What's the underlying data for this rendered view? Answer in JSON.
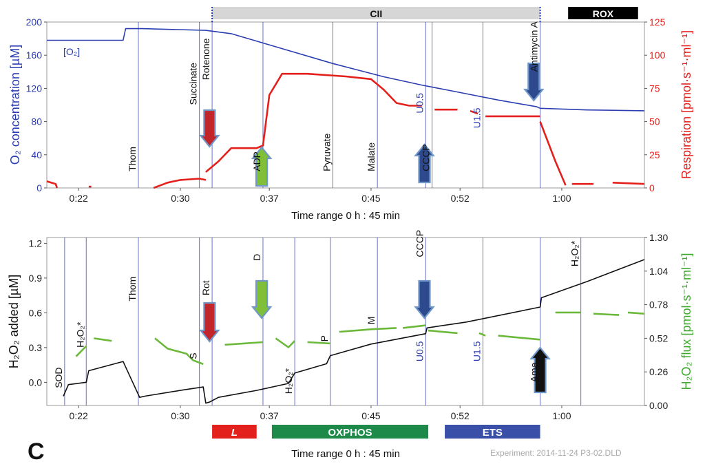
{
  "figure": {
    "panel_letter": "C",
    "experiment_note": "Experiment:  2014-11-24 P3-02.DLD",
    "colors": {
      "o2": "#2a3db0",
      "respiration": "#e3201b",
      "h2o2_added": "#111111",
      "h2o2_flux": "#6bb83a",
      "marker_line": "#3a3fb5",
      "cii_bar": "#d6d6d6",
      "rox_bar": "#000000",
      "L_bar": "#e3201b",
      "oxphos_bar": "#1e8a4a",
      "ets_bar": "#3a4fa8"
    }
  },
  "chart_data": [
    {
      "type": "line",
      "title": "",
      "xlabel": "Time range 0 h : 45 min",
      "x_tick_labels": [
        "0:22",
        "0:30",
        "0:37",
        "0:45",
        "0:52",
        "1:00"
      ],
      "x_ticks_min": [
        22,
        30,
        37,
        45,
        52,
        60
      ],
      "xlim_min": [
        19.5,
        66.5
      ],
      "y_left": {
        "label": "O₂ concentration [µM]",
        "lim": [
          0,
          200
        ],
        "ticks": [
          "0",
          "40",
          "80",
          "120",
          "160",
          "200"
        ]
      },
      "y_right": {
        "label": "Respiration [pmol·s⁻¹·ml⁻¹]",
        "lim": [
          0,
          125
        ],
        "ticks": [
          "0",
          "25",
          "50",
          "75",
          "100",
          "125"
        ]
      },
      "phase_bars": [
        {
          "label": "CII",
          "from_min": 32.5,
          "to_min": 58.3
        },
        {
          "label": "ROX",
          "from_min": 60.5,
          "to_min": 66.0
        }
      ],
      "series": [
        {
          "name": "[O₂]",
          "axis": "left",
          "x": [
            19.5,
            25.5,
            25.7,
            27.0,
            32.0,
            34.0,
            38.0,
            42.0,
            46.0,
            49.0,
            52.0,
            55.0,
            58.0,
            58.3,
            62.0,
            66.5
          ],
          "y": [
            178,
            178,
            192,
            192,
            190,
            186,
            168,
            150,
            134,
            124,
            115,
            106,
            98,
            96,
            94,
            93
          ]
        },
        {
          "name": "Respiration",
          "axis": "right",
          "segments": [
            {
              "x": [
                19.5,
                20.2,
                20.3
              ],
              "y": [
                5,
                3,
                0
              ]
            },
            {
              "x": [
                22.8,
                23.0
              ],
              "y": [
                1,
                1
              ]
            },
            {
              "x": [
                27.9,
                29.0,
                30.0,
                31.5,
                32.0
              ],
              "y": [
                0,
                4,
                6,
                7,
                6
              ]
            },
            {
              "x": [
                32.0,
                33.0,
                34.0,
                35.0,
                36.0,
                36.5,
                37.0,
                38.0,
                40.0,
                43.0,
                45.0,
                46.0,
                47.0,
                48.0,
                49.0
              ],
              "y": [
                12,
                20,
                30,
                30,
                30,
                32,
                70,
                86,
                86,
                84,
                82,
                74,
                64,
                62,
                62
              ]
            },
            {
              "x": [
                50.0,
                51.8
              ],
              "y": [
                59,
                59
              ]
            },
            {
              "x": [
                52.8,
                53.4
              ],
              "y": [
                58,
                56
              ]
            },
            {
              "x": [
                54.0,
                58.3
              ],
              "y": [
                54,
                54
              ]
            },
            {
              "x": [
                58.3,
                59.5,
                60.3
              ],
              "y": [
                50,
                20,
                2
              ]
            },
            {
              "x": [
                60.8,
                62.5
              ],
              "y": [
                3,
                3
              ]
            },
            {
              "x": [
                64.0,
                66.5
              ],
              "y": [
                4,
                3
              ]
            }
          ]
        }
      ],
      "markers": [
        {
          "label": "Thom",
          "x_min": 26.7,
          "label_y": 20
        },
        {
          "label": "Succinate",
          "x_min": 31.5,
          "label_y": 100
        },
        {
          "label": "Rotenone",
          "x_min": 32.5,
          "label_y": 130
        },
        {
          "label": "ADP",
          "x_min": 36.5,
          "label_y": 20
        },
        {
          "label": "Pyruvate",
          "x_min": 42.0,
          "label_y": 20
        },
        {
          "label": "Malate",
          "x_min": 45.5,
          "label_y": 20
        },
        {
          "label": "U0.5",
          "x_min": 49.3,
          "label_y": 90
        },
        {
          "label": "CCCP",
          "x_min": 49.8,
          "label_y": 20
        },
        {
          "label": "U1.5",
          "x_min": 53.8,
          "label_y": 72
        },
        {
          "label": "Antimycin A",
          "x_min": 58.3,
          "label_y": 140
        }
      ],
      "annotations": [
        "[O₂]"
      ],
      "gridlines": false
    },
    {
      "type": "line",
      "title": "",
      "xlabel": "Time range 0 h : 45 min",
      "x_tick_labels": [
        "0:22",
        "0:30",
        "0:37",
        "0:45",
        "0:52",
        "1:00"
      ],
      "x_ticks_min": [
        22,
        30,
        37,
        45,
        52,
        60
      ],
      "xlim_min": [
        19.5,
        66.5
      ],
      "y_left": {
        "label": "H₂O₂ added [µM]",
        "lim": [
          -0.2,
          1.25
        ],
        "ticks": [
          "0.0",
          "0.3",
          "0.6",
          "0.9",
          "1.2"
        ],
        "tick_values": [
          0.0,
          0.3,
          0.6,
          0.9,
          1.2
        ]
      },
      "y_right": {
        "label": "H₂O₂ flux [pmol·s⁻¹·ml⁻¹]",
        "lim": [
          0,
          1.3
        ],
        "ticks": [
          "0.00",
          "0.26",
          "0.52",
          "0.78",
          "1.04",
          "1.30"
        ]
      },
      "phase_bars": [
        {
          "label": "L",
          "from_min": 32.5,
          "to_min": 36.0
        },
        {
          "label": "OXPHOS",
          "from_min": 37.2,
          "to_min": 49.5
        },
        {
          "label": "ETS",
          "from_min": 50.8,
          "to_min": 58.3
        }
      ],
      "series": [
        {
          "name": "H₂O₂ added",
          "axis": "left",
          "x": [
            20.8,
            21.2,
            22.6,
            22.8,
            25.5,
            26.8,
            27.2,
            30.0,
            31.8,
            32.0,
            32.3,
            33.0,
            36.0,
            38.5,
            39.0,
            41.5,
            41.8,
            45.0,
            49.3,
            49.4,
            52.5,
            58.3,
            58.4,
            62.0,
            66.5
          ],
          "y": [
            -0.12,
            -0.02,
            0.0,
            0.1,
            0.18,
            -0.13,
            -0.12,
            -0.07,
            -0.04,
            -0.18,
            -0.17,
            -0.13,
            -0.07,
            -0.01,
            0.08,
            0.16,
            0.23,
            0.33,
            0.42,
            0.47,
            0.52,
            0.65,
            0.73,
            0.87,
            1.06
          ]
        },
        {
          "name": "H₂O₂ flux",
          "axis": "right",
          "segments": [
            {
              "x": [
                21.8,
                22.6
              ],
              "y": [
                0.38,
                0.46
              ]
            },
            {
              "x": [
                23.2,
                24.6
              ],
              "y": [
                0.52,
                0.5
              ]
            },
            {
              "x": [
                28.0,
                29.0,
                30.5,
                31.0,
                31.8
              ],
              "y": [
                0.52,
                0.44,
                0.4,
                0.35,
                0.32
              ]
            },
            {
              "x": [
                33.5,
                36.5
              ],
              "y": [
                0.47,
                0.49
              ]
            },
            {
              "x": [
                37.5,
                38.5,
                39.0
              ],
              "y": [
                0.52,
                0.45,
                0.5
              ]
            },
            {
              "x": [
                40.0,
                41.8
              ],
              "y": [
                0.49,
                0.48
              ]
            },
            {
              "x": [
                42.5,
                45.0,
                47.0
              ],
              "y": [
                0.57,
                0.59,
                0.6
              ]
            },
            {
              "x": [
                47.5,
                49.3
              ],
              "y": [
                0.6,
                0.62
              ]
            },
            {
              "x": [
                49.5,
                51.8
              ],
              "y": [
                0.58,
                0.56
              ]
            },
            {
              "x": [
                53.5,
                54.0
              ],
              "y": [
                0.56,
                0.54
              ]
            },
            {
              "x": [
                55.0,
                58.3
              ],
              "y": [
                0.54,
                0.51
              ]
            },
            {
              "x": [
                59.5,
                61.5
              ],
              "y": [
                0.72,
                0.72
              ]
            },
            {
              "x": [
                62.5,
                64.5
              ],
              "y": [
                0.71,
                0.7
              ]
            },
            {
              "x": [
                65.2,
                66.5
              ],
              "y": [
                0.72,
                0.71
              ]
            }
          ]
        }
      ],
      "markers": [
        {
          "label": "SOD",
          "x_min": 20.9,
          "label_y": -0.05
        },
        {
          "label": "H₂O₂*",
          "x_min": 22.6,
          "label_y": 0.3
        },
        {
          "label": "Thom",
          "x_min": 26.7,
          "label_y": 0.7
        },
        {
          "label": "S",
          "x_min": 31.5,
          "label_y": 0.2
        },
        {
          "label": "Rot",
          "x_min": 32.5,
          "label_y": 0.75
        },
        {
          "label": "D",
          "x_min": 36.5,
          "label_y": 1.05
        },
        {
          "label": "H₂O₂*",
          "x_min": 39.0,
          "label_y": -0.1
        },
        {
          "label": "P",
          "x_min": 41.8,
          "label_y": 0.35
        },
        {
          "label": "M",
          "x_min": 45.5,
          "label_y": 0.5
        },
        {
          "label": "CCCP",
          "x_min": 49.3,
          "label_y": 1.08
        },
        {
          "label": "U0.5",
          "x_min": 49.3,
          "label_y": 0.18
        },
        {
          "label": "U1.5",
          "x_min": 53.8,
          "label_y": 0.18
        },
        {
          "label": "Ama",
          "x_min": 58.3,
          "label_y": 0.0
        },
        {
          "label": "H₂O₂*",
          "x_min": 61.5,
          "label_y": 1.0
        }
      ],
      "gridlines": false
    }
  ]
}
